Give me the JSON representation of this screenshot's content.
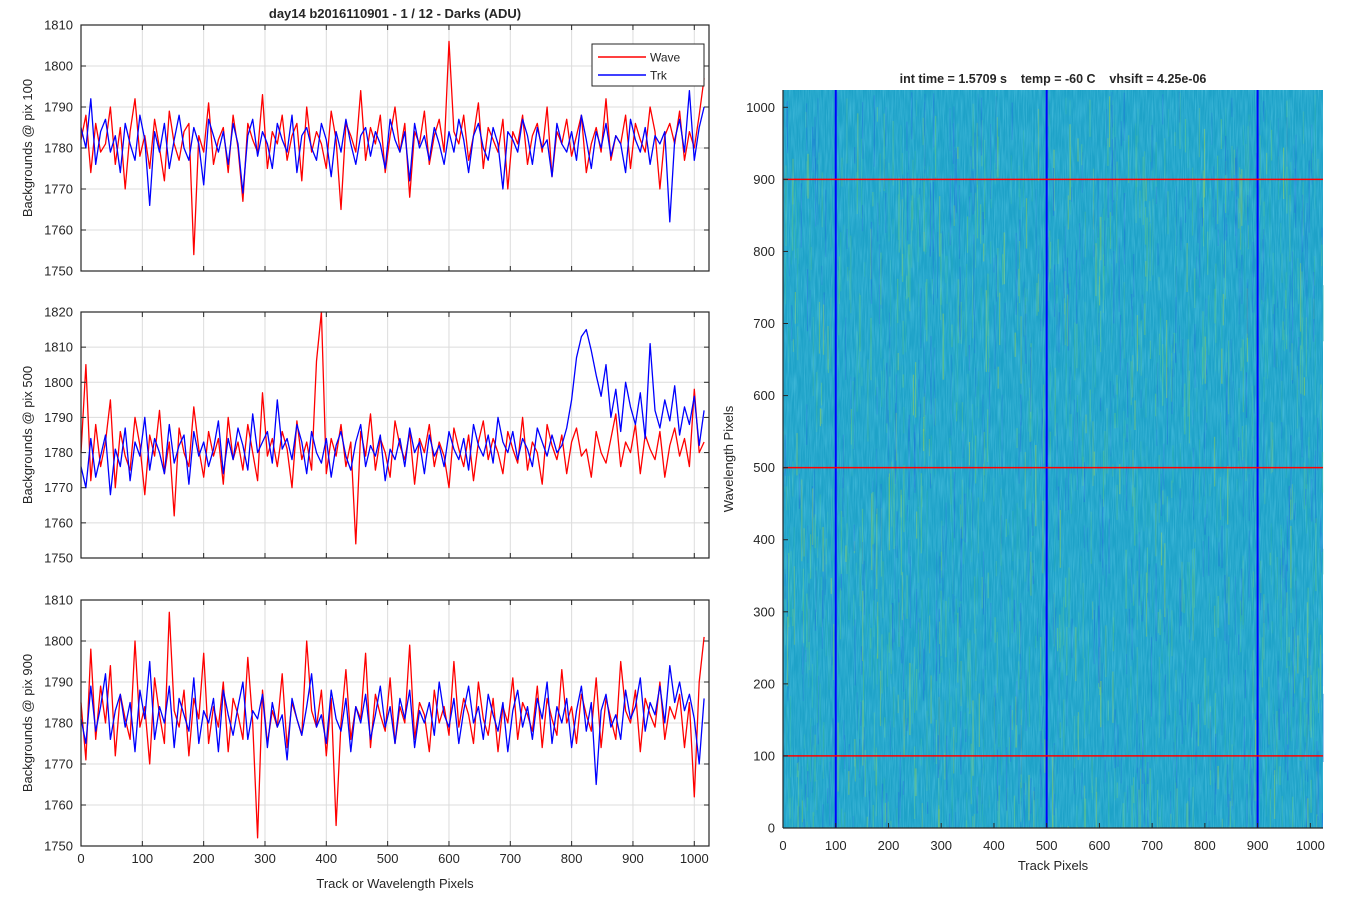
{
  "figure_title": "day14 b2016110901 - 1 / 12 - Darks (ADU)",
  "colors": {
    "wave": "#ff0000",
    "trk": "#0000ff",
    "grid": "#dcdcdc",
    "axis": "#262626"
  },
  "chart_data": [
    {
      "type": "line",
      "title": "day14 b2016110901 - 1 / 12 - Darks (ADU)",
      "xlabel": "",
      "ylabel": "Backgrounds @ pix 100",
      "xlim": [
        0,
        1024
      ],
      "ylim": [
        1750,
        1810
      ],
      "xticks": [
        0,
        100,
        200,
        300,
        400,
        500,
        600,
        700,
        800,
        900,
        1000
      ],
      "yticks": [
        1750,
        1760,
        1770,
        1780,
        1790,
        1800,
        1810
      ],
      "show_xtick_labels": false,
      "grid": true,
      "legend": {
        "position": "top-right",
        "entries": [
          "Wave",
          "Trk"
        ]
      },
      "series": [
        {
          "name": "Wave",
          "color": "#ff0000",
          "x_step": 8,
          "values": [
            1782,
            1788,
            1774,
            1786,
            1779,
            1781,
            1790,
            1776,
            1785,
            1770,
            1784,
            1792,
            1778,
            1783,
            1775,
            1787,
            1780,
            1772,
            1789,
            1781,
            1777,
            1784,
            1786,
            1754,
            1783,
            1779,
            1791,
            1776,
            1782,
            1785,
            1774,
            1788,
            1780,
            1767,
            1786,
            1782,
            1779,
            1793,
            1775,
            1784,
            1781,
            1788,
            1777,
            1783,
            1786,
            1772,
            1790,
            1779,
            1784,
            1781,
            1775,
            1789,
            1782,
            1765,
            1786,
            1783,
            1779,
            1794,
            1777,
            1785,
            1781,
            1788,
            1774,
            1783,
            1790,
            1779,
            1786,
            1768,
            1784,
            1781,
            1789,
            1776,
            1783,
            1787,
            1779,
            1806,
            1784,
            1781,
            1788,
            1777,
            1783,
            1791,
            1775,
            1785,
            1782,
            1779,
            1787,
            1770,
            1784,
            1781,
            1788,
            1776,
            1783,
            1786,
            1779,
            1790,
            1773,
            1784,
            1781,
            1787,
            1778,
            1783,
            1788,
            1774,
            1781,
            1785,
            1779,
            1792,
            1777,
            1783,
            1781,
            1788,
            1775,
            1786,
            1782,
            1779,
            1790,
            1784,
            1770,
            1783,
            1786,
            1781,
            1789,
            1777,
            1784,
            1780,
            1788,
            1797
          ]
        },
        {
          "name": "Trk",
          "color": "#0000ff",
          "x_step": 8,
          "values": [
            1785,
            1780,
            1792,
            1776,
            1784,
            1787,
            1779,
            1783,
            1774,
            1786,
            1781,
            1777,
            1788,
            1782,
            1766,
            1784,
            1779,
            1786,
            1775,
            1782,
            1788,
            1780,
            1777,
            1785,
            1781,
            1771,
            1787,
            1783,
            1779,
            1784,
            1776,
            1786,
            1781,
            1769,
            1783,
            1787,
            1778,
            1784,
            1781,
            1775,
            1786,
            1782,
            1779,
            1788,
            1774,
            1783,
            1785,
            1780,
            1777,
            1786,
            1782,
            1773,
            1784,
            1779,
            1787,
            1781,
            1776,
            1783,
            1785,
            1778,
            1784,
            1781,
            1775,
            1787,
            1782,
            1779,
            1784,
            1772,
            1786,
            1780,
            1783,
            1777,
            1785,
            1781,
            1776,
            1784,
            1779,
            1787,
            1782,
            1774,
            1783,
            1786,
            1780,
            1777,
            1785,
            1781,
            1770,
            1784,
            1782,
            1779,
            1787,
            1783,
            1776,
            1785,
            1780,
            1782,
            1773,
            1786,
            1781,
            1779,
            1784,
            1777,
            1788,
            1782,
            1775,
            1784,
            1780,
            1786,
            1778,
            1783,
            1781,
            1774,
            1787,
            1782,
            1779,
            1785,
            1776,
            1783,
            1781,
            1784,
            1762,
            1782,
            1787,
            1779,
            1794,
            1777,
            1785,
            1790
          ]
        }
      ]
    },
    {
      "type": "line",
      "title": "",
      "xlabel": "",
      "ylabel": "Backgrounds @ pix 500",
      "xlim": [
        0,
        1024
      ],
      "ylim": [
        1750,
        1820
      ],
      "xticks": [
        0,
        100,
        200,
        300,
        400,
        500,
        600,
        700,
        800,
        900,
        1000
      ],
      "yticks": [
        1750,
        1760,
        1770,
        1780,
        1790,
        1800,
        1810,
        1820
      ],
      "show_xtick_labels": false,
      "grid": true,
      "series": [
        {
          "name": "Wave",
          "color": "#ff0000",
          "x_step": 8,
          "values": [
            1780,
            1805,
            1772,
            1788,
            1776,
            1783,
            1795,
            1770,
            1786,
            1779,
            1775,
            1790,
            1782,
            1768,
            1785,
            1779,
            1792,
            1774,
            1783,
            1762,
            1787,
            1780,
            1776,
            1793,
            1781,
            1773,
            1786,
            1779,
            1784,
            1771,
            1790,
            1778,
            1783,
            1775,
            1788,
            1780,
            1772,
            1797,
            1779,
            1784,
            1776,
            1786,
            1781,
            1770,
            1789,
            1778,
            1783,
            1775,
            1806,
            1820,
            1774,
            1784,
            1779,
            1788,
            1776,
            1783,
            1754,
            1786,
            1779,
            1791,
            1775,
            1784,
            1780,
            1773,
            1789,
            1782,
            1778,
            1786,
            1771,
            1784,
            1780,
            1788,
            1776,
            1783,
            1779,
            1770,
            1787,
            1781,
            1776,
            1785,
            1772,
            1783,
            1789,
            1778,
            1784,
            1780,
            1774,
            1786,
            1781,
            1777,
            1790,
            1775,
            1783,
            1780,
            1771,
            1788,
            1782,
            1778,
            1785,
            1774,
            1783,
            1787,
            1779,
            1781,
            1773,
            1786,
            1780,
            1777,
            1784,
            1791,
            1776,
            1783,
            1780,
            1788,
            1774,
            1785,
            1781,
            1778,
            1786,
            1773,
            1782,
            1787,
            1779,
            1784,
            1776,
            1798,
            1780,
            1783
          ]
        },
        {
          "name": "Trk",
          "color": "#0000ff",
          "x_step": 8,
          "values": [
            1776,
            1770,
            1784,
            1773,
            1779,
            1785,
            1768,
            1781,
            1776,
            1787,
            1772,
            1783,
            1779,
            1790,
            1775,
            1784,
            1780,
            1774,
            1788,
            1777,
            1782,
            1785,
            1771,
            1786,
            1779,
            1783,
            1776,
            1781,
            1789,
            1774,
            1784,
            1778,
            1787,
            1782,
            1775,
            1791,
            1780,
            1783,
            1786,
            1777,
            1795,
            1781,
            1784,
            1778,
            1788,
            1783,
            1774,
            1786,
            1780,
            1777,
            1784,
            1773,
            1782,
            1786,
            1779,
            1775,
            1783,
            1788,
            1776,
            1782,
            1779,
            1785,
            1772,
            1781,
            1778,
            1784,
            1776,
            1787,
            1780,
            1783,
            1774,
            1785,
            1779,
            1782,
            1776,
            1786,
            1781,
            1778,
            1784,
            1775,
            1788,
            1782,
            1779,
            1785,
            1777,
            1790,
            1783,
            1780,
            1786,
            1778,
            1784,
            1781,
            1776,
            1787,
            1783,
            1779,
            1785,
            1780,
            1782,
            1787,
            1795,
            1807,
            1813,
            1815,
            1809,
            1802,
            1796,
            1805,
            1790,
            1798,
            1786,
            1800,
            1793,
            1788,
            1797,
            1784,
            1811,
            1792,
            1787,
            1795,
            1789,
            1799,
            1785,
            1793,
            1788,
            1796,
            1782,
            1792
          ]
        }
      ]
    },
    {
      "type": "line",
      "title": "",
      "xlabel": "Track or Wavelength Pixels",
      "ylabel": "Backgrounds @ pix 900",
      "xlim": [
        0,
        1024
      ],
      "ylim": [
        1750,
        1810
      ],
      "xticks": [
        0,
        100,
        200,
        300,
        400,
        500,
        600,
        700,
        800,
        900,
        1000
      ],
      "yticks": [
        1750,
        1760,
        1770,
        1780,
        1790,
        1800,
        1810
      ],
      "show_xtick_labels": true,
      "grid": true,
      "series": [
        {
          "name": "Wave",
          "color": "#ff0000",
          "x_step": 8,
          "values": [
            1785,
            1771,
            1798,
            1776,
            1789,
            1780,
            1794,
            1772,
            1787,
            1781,
            1776,
            1800,
            1779,
            1784,
            1770,
            1791,
            1782,
            1775,
            1807,
            1783,
            1779,
            1788,
            1772,
            1786,
            1781,
            1797,
            1775,
            1784,
            1779,
            1790,
            1773,
            1786,
            1782,
            1776,
            1796,
            1780,
            1752,
            1788,
            1775,
            1783,
            1779,
            1792,
            1774,
            1785,
            1781,
            1777,
            1800,
            1783,
            1779,
            1788,
            1772,
            1786,
            1755,
            1780,
            1793,
            1776,
            1784,
            1781,
            1797,
            1774,
            1787,
            1782,
            1778,
            1791,
            1775,
            1784,
            1780,
            1799,
            1776,
            1785,
            1782,
            1773,
            1788,
            1780,
            1784,
            1777,
            1795,
            1779,
            1786,
            1782,
            1775,
            1790,
            1781,
            1777,
            1786,
            1773,
            1784,
            1780,
            1791,
            1776,
            1785,
            1782,
            1778,
            1789,
            1774,
            1786,
            1781,
            1777,
            1793,
            1780,
            1784,
            1775,
            1787,
            1782,
            1778,
            1791,
            1774,
            1786,
            1781,
            1776,
            1795,
            1783,
            1780,
            1788,
            1773,
            1786,
            1782,
            1779,
            1790,
            1776,
            1784,
            1781,
            1787,
            1774,
            1785,
            1762,
            1790,
            1801
          ]
        },
        {
          "name": "Trk",
          "color": "#0000ff",
          "x_step": 8,
          "values": [
            1781,
            1775,
            1789,
            1778,
            1784,
            1792,
            1776,
            1783,
            1787,
            1779,
            1785,
            1773,
            1788,
            1781,
            1795,
            1776,
            1784,
            1780,
            1789,
            1774,
            1786,
            1782,
            1778,
            1791,
            1775,
            1783,
            1780,
            1786,
            1773,
            1788,
            1782,
            1777,
            1784,
            1790,
            1776,
            1783,
            1781,
            1787,
            1774,
            1785,
            1779,
            1782,
            1771,
            1786,
            1781,
            1777,
            1784,
            1792,
            1779,
            1782,
            1775,
            1788,
            1781,
            1778,
            1786,
            1773,
            1784,
            1780,
            1787,
            1776,
            1782,
            1789,
            1779,
            1784,
            1775,
            1786,
            1781,
            1788,
            1774,
            1783,
            1780,
            1785,
            1777,
            1790,
            1782,
            1779,
            1786,
            1775,
            1783,
            1789,
            1780,
            1784,
            1776,
            1787,
            1782,
            1778,
            1785,
            1773,
            1783,
            1788,
            1779,
            1784,
            1776,
            1786,
            1781,
            1790,
            1775,
            1784,
            1780,
            1786,
            1774,
            1783,
            1789,
            1778,
            1785,
            1765,
            1783,
            1787,
            1779,
            1782,
            1776,
            1788,
            1781,
            1784,
            1791,
            1778,
            1785,
            1782,
            1789,
            1780,
            1794,
            1785,
            1790,
            1783,
            1787,
            1781,
            1770,
            1786
          ]
        }
      ]
    },
    {
      "type": "heatmap",
      "title": "int time = 1.5709 s    temp = -60 C    vhsift = 4.25e-06",
      "xlabel": "Track Pixels",
      "ylabel": "Wavelength Pixels",
      "xlim": [
        0,
        1024
      ],
      "ylim": [
        0,
        1024
      ],
      "xticks": [
        0,
        100,
        200,
        300,
        400,
        500,
        600,
        700,
        800,
        900,
        1000
      ],
      "yticks": [
        0,
        100,
        200,
        300,
        400,
        500,
        600,
        700,
        800,
        900,
        1000
      ],
      "vertical_lines": {
        "x": [
          100,
          500,
          900
        ],
        "color": "#0000ff"
      },
      "horizontal_lines": {
        "y": [
          100,
          500,
          900
        ],
        "color": "#ff0000"
      },
      "colormap": [
        "#1f7fd6",
        "#1ea2c8",
        "#2fb3ae",
        "#4fbf90",
        "#7cc66a"
      ]
    }
  ]
}
